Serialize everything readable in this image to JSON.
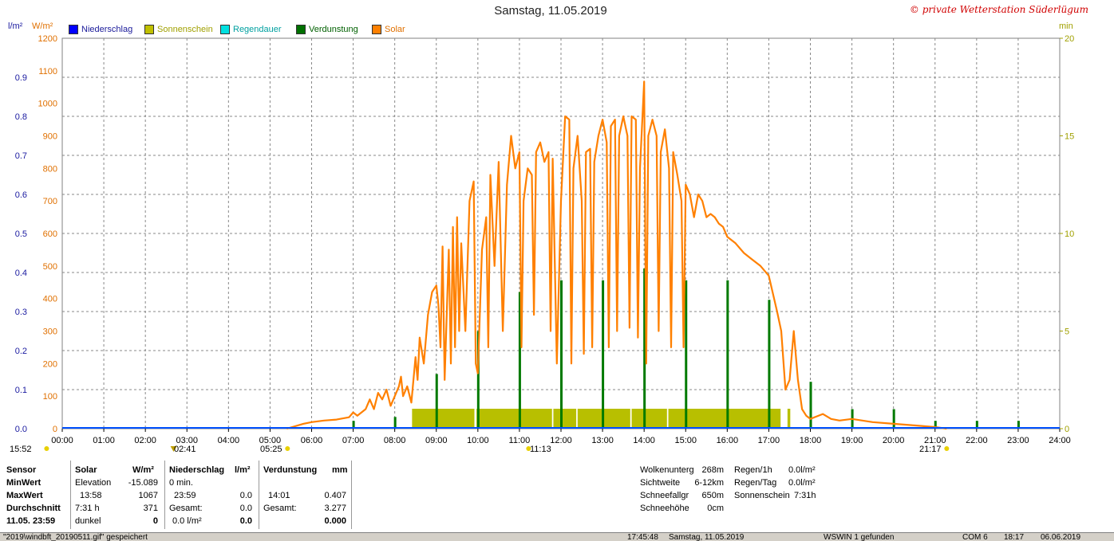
{
  "title": "Samstag, 11.05.2019",
  "copyright": "© private Wetterstation Süderlügum",
  "units": {
    "left1": "l/m²",
    "left2": "W/m²",
    "right": "min"
  },
  "legend": [
    {
      "label": "Niederschlag",
      "color": "#0000ff"
    },
    {
      "label": "Sonnenschein",
      "color": "#c0c000"
    },
    {
      "label": "Regendauer",
      "color": "#00e0e0"
    },
    {
      "label": "Verdunstung",
      "color": "#007000"
    },
    {
      "label": "Solar",
      "color": "#ff8000"
    }
  ],
  "colors": {
    "solar": "#ff8000",
    "sun": "#b8bf00",
    "evap": "#007a00",
    "rain": "#0050ff",
    "left1_axis": "#1a1aa0",
    "left2_axis": "#e07000",
    "right_axis": "#a0a000"
  },
  "markers": {
    "left_time": "15:52",
    "sunrise": "05:25",
    "moon": "02:41",
    "noon": "11:13",
    "sunset": "21:17"
  },
  "chart_data": {
    "type": "line",
    "title": "Samstag, 11.05.2019",
    "x_range": [
      "00:00",
      "24:00"
    ],
    "x_ticks": [
      "00:00",
      "01:00",
      "02:00",
      "03:00",
      "04:00",
      "05:00",
      "06:00",
      "07:00",
      "08:00",
      "09:00",
      "10:00",
      "11:00",
      "12:00",
      "13:00",
      "14:00",
      "15:00",
      "16:00",
      "17:00",
      "18:00",
      "19:00",
      "20:00",
      "21:00",
      "22:00",
      "23:00",
      "24:00"
    ],
    "y_left1": {
      "label": "l/m²",
      "range": [
        0,
        1.0
      ],
      "ticks": [
        "0.0",
        "0.1",
        "0.2",
        "0.3",
        "0.4",
        "0.5",
        "0.6",
        "0.7",
        "0.8",
        "0.9"
      ]
    },
    "y_left2": {
      "label": "W/m²",
      "range": [
        0,
        1200
      ],
      "ticks": [
        "0",
        "100",
        "200",
        "300",
        "400",
        "500",
        "600",
        "700",
        "800",
        "900",
        "1000",
        "1100",
        "1200"
      ]
    },
    "y_right": {
      "label": "min",
      "range": [
        0,
        20
      ],
      "ticks": [
        "0",
        "5",
        "10",
        "15",
        "20"
      ]
    },
    "grid": true,
    "legend_position": "top-left",
    "series": [
      {
        "name": "Solar",
        "axis": "W/m²",
        "points": [
          [
            5.4,
            0
          ],
          [
            5.8,
            15
          ],
          [
            6.0,
            20
          ],
          [
            6.3,
            25
          ],
          [
            6.6,
            28
          ],
          [
            6.9,
            35
          ],
          [
            7.0,
            50
          ],
          [
            7.1,
            40
          ],
          [
            7.3,
            60
          ],
          [
            7.4,
            90
          ],
          [
            7.5,
            60
          ],
          [
            7.6,
            110
          ],
          [
            7.7,
            90
          ],
          [
            7.8,
            120
          ],
          [
            7.9,
            70
          ],
          [
            8.0,
            100
          ],
          [
            8.1,
            130
          ],
          [
            8.15,
            160
          ],
          [
            8.2,
            100
          ],
          [
            8.3,
            130
          ],
          [
            8.4,
            80
          ],
          [
            8.5,
            220
          ],
          [
            8.55,
            150
          ],
          [
            8.6,
            280
          ],
          [
            8.7,
            200
          ],
          [
            8.8,
            350
          ],
          [
            8.9,
            420
          ],
          [
            9.0,
            440
          ],
          [
            9.05,
            380
          ],
          [
            9.1,
            250
          ],
          [
            9.15,
            560
          ],
          [
            9.2,
            150
          ],
          [
            9.3,
            550
          ],
          [
            9.35,
            200
          ],
          [
            9.4,
            620
          ],
          [
            9.45,
            250
          ],
          [
            9.5,
            650
          ],
          [
            9.55,
            300
          ],
          [
            9.6,
            570
          ],
          [
            9.7,
            300
          ],
          [
            9.8,
            700
          ],
          [
            9.9,
            760
          ],
          [
            9.95,
            200
          ],
          [
            10.0,
            170
          ],
          [
            10.1,
            550
          ],
          [
            10.2,
            650
          ],
          [
            10.25,
            250
          ],
          [
            10.3,
            780
          ],
          [
            10.4,
            500
          ],
          [
            10.5,
            820
          ],
          [
            10.6,
            300
          ],
          [
            10.7,
            750
          ],
          [
            10.8,
            900
          ],
          [
            10.9,
            800
          ],
          [
            11.0,
            850
          ],
          [
            11.05,
            250
          ],
          [
            11.1,
            700
          ],
          [
            11.2,
            800
          ],
          [
            11.3,
            780
          ],
          [
            11.35,
            350
          ],
          [
            11.4,
            850
          ],
          [
            11.5,
            880
          ],
          [
            11.6,
            820
          ],
          [
            11.7,
            850
          ],
          [
            11.75,
            300
          ],
          [
            11.8,
            830
          ],
          [
            11.9,
            200
          ],
          [
            12.0,
            700
          ],
          [
            12.1,
            960
          ],
          [
            12.2,
            950
          ],
          [
            12.25,
            200
          ],
          [
            12.3,
            800
          ],
          [
            12.4,
            900
          ],
          [
            12.5,
            700
          ],
          [
            12.55,
            230
          ],
          [
            12.6,
            850
          ],
          [
            12.7,
            860
          ],
          [
            12.75,
            250
          ],
          [
            12.8,
            820
          ],
          [
            12.9,
            900
          ],
          [
            13.0,
            950
          ],
          [
            13.1,
            880
          ],
          [
            13.15,
            250
          ],
          [
            13.2,
            930
          ],
          [
            13.3,
            950
          ],
          [
            13.35,
            300
          ],
          [
            13.4,
            900
          ],
          [
            13.5,
            960
          ],
          [
            13.6,
            900
          ],
          [
            13.65,
            310
          ],
          [
            13.7,
            960
          ],
          [
            13.8,
            950
          ],
          [
            13.85,
            280
          ],
          [
            13.9,
            800
          ],
          [
            14.0,
            1067
          ],
          [
            14.05,
            200
          ],
          [
            14.1,
            900
          ],
          [
            14.2,
            950
          ],
          [
            14.3,
            900
          ],
          [
            14.35,
            300
          ],
          [
            14.4,
            850
          ],
          [
            14.5,
            920
          ],
          [
            14.6,
            800
          ],
          [
            14.65,
            250
          ],
          [
            14.7,
            850
          ],
          [
            14.8,
            780
          ],
          [
            14.9,
            700
          ],
          [
            14.95,
            250
          ],
          [
            15.0,
            750
          ],
          [
            15.1,
            720
          ],
          [
            15.2,
            650
          ],
          [
            15.3,
            720
          ],
          [
            15.4,
            700
          ],
          [
            15.5,
            650
          ],
          [
            15.6,
            660
          ],
          [
            15.7,
            650
          ],
          [
            15.8,
            630
          ],
          [
            15.9,
            620
          ],
          [
            16.0,
            590
          ],
          [
            16.2,
            570
          ],
          [
            16.4,
            540
          ],
          [
            16.6,
            520
          ],
          [
            16.8,
            500
          ],
          [
            17.0,
            470
          ],
          [
            17.2,
            360
          ],
          [
            17.3,
            300
          ],
          [
            17.4,
            120
          ],
          [
            17.5,
            150
          ],
          [
            17.6,
            300
          ],
          [
            17.7,
            150
          ],
          [
            17.8,
            60
          ],
          [
            17.9,
            40
          ],
          [
            18.0,
            30
          ],
          [
            18.3,
            45
          ],
          [
            18.5,
            30
          ],
          [
            18.7,
            25
          ],
          [
            19.0,
            30
          ],
          [
            19.5,
            20
          ],
          [
            20.0,
            15
          ],
          [
            20.5,
            10
          ],
          [
            21.0,
            5
          ],
          [
            21.28,
            0
          ]
        ]
      },
      {
        "name": "Sonnenschein",
        "axis": "min",
        "intervals": [
          [
            "08:25",
            "09:55"
          ],
          [
            "09:58",
            "11:47"
          ],
          [
            "11:49",
            "12:22"
          ],
          [
            "12:24",
            "13:40"
          ],
          [
            "13:42",
            "14:33"
          ],
          [
            "14:35",
            "17:17"
          ],
          [
            "17:27",
            "17:31"
          ]
        ]
      },
      {
        "name": "Verdunstung",
        "axis": "l/m²",
        "points": [
          [
            7.0,
            0.02
          ],
          [
            8.0,
            0.03
          ],
          [
            9.0,
            0.14
          ],
          [
            10.0,
            0.25
          ],
          [
            11.0,
            0.35
          ],
          [
            12.0,
            0.38
          ],
          [
            13.0,
            0.38
          ],
          [
            14.0,
            0.41
          ],
          [
            15.0,
            0.38
          ],
          [
            16.0,
            0.38
          ],
          [
            17.0,
            0.33
          ],
          [
            18.0,
            0.12
          ],
          [
            19.0,
            0.05
          ],
          [
            20.0,
            0.05
          ],
          [
            21.0,
            0.02
          ],
          [
            22.0,
            0.02
          ],
          [
            23.0,
            0.02
          ]
        ]
      },
      {
        "name": "Niederschlag",
        "axis": "l/m²",
        "points": [
          [
            0,
            0
          ],
          [
            24,
            0
          ]
        ]
      }
    ]
  },
  "stats": {
    "sensor_label": "Sensor",
    "min_label": "MinWert",
    "max_label": "MaxWert",
    "avg_label": "Durchschnitt",
    "date_label": "11.05. 23:59",
    "solar": {
      "head": "Solar",
      "unit": "W/m²",
      "min_name": "Elevation",
      "min_val": "-15.089",
      "max_time": "13:58",
      "max_val": "1067",
      "avg_time": "7:31 h",
      "avg_val": "371",
      "dark": "dunkel",
      "dark_val": "0"
    },
    "rain": {
      "head": "Niederschlag",
      "unit": "l/m²",
      "min_val": "0 min.",
      "max_time": "23:59",
      "max_val": "0.0",
      "total_label": "Gesamt:",
      "total_val": "0.0",
      "last1": "0.0 l/m²",
      "last2": "0.0"
    },
    "evap": {
      "head": "Verdunstung",
      "unit": "mm",
      "max_time": "14:01",
      "max_val": "0.407",
      "total_label": "Gesamt:",
      "total_val": "3.277",
      "last_val": "0.000"
    },
    "weather": [
      {
        "label": "Wolkenunterg",
        "value": "268m"
      },
      {
        "label": "Sichtweite",
        "value": "6-12km"
      },
      {
        "label": "Schneefallgr",
        "value": "650m"
      },
      {
        "label": "Schneehöhe",
        "value": "0cm"
      }
    ],
    "rainstat": [
      {
        "label": "Regen/1h",
        "value": "0.0l/m²"
      },
      {
        "label": "Regen/Tag",
        "value": "0.0l/m²"
      },
      {
        "label": "Sonnenschein",
        "value": "7:31h"
      }
    ]
  },
  "statusbar": {
    "file": "\"2019\\windbft_20190511.gif\" gespeichert",
    "time": "17:45:48",
    "date": "Samstag, 11.05.2019",
    "station": "WSWIN 1 gefunden",
    "com": "COM 6",
    "clock": "18:17",
    "today": "06.06.2019"
  }
}
